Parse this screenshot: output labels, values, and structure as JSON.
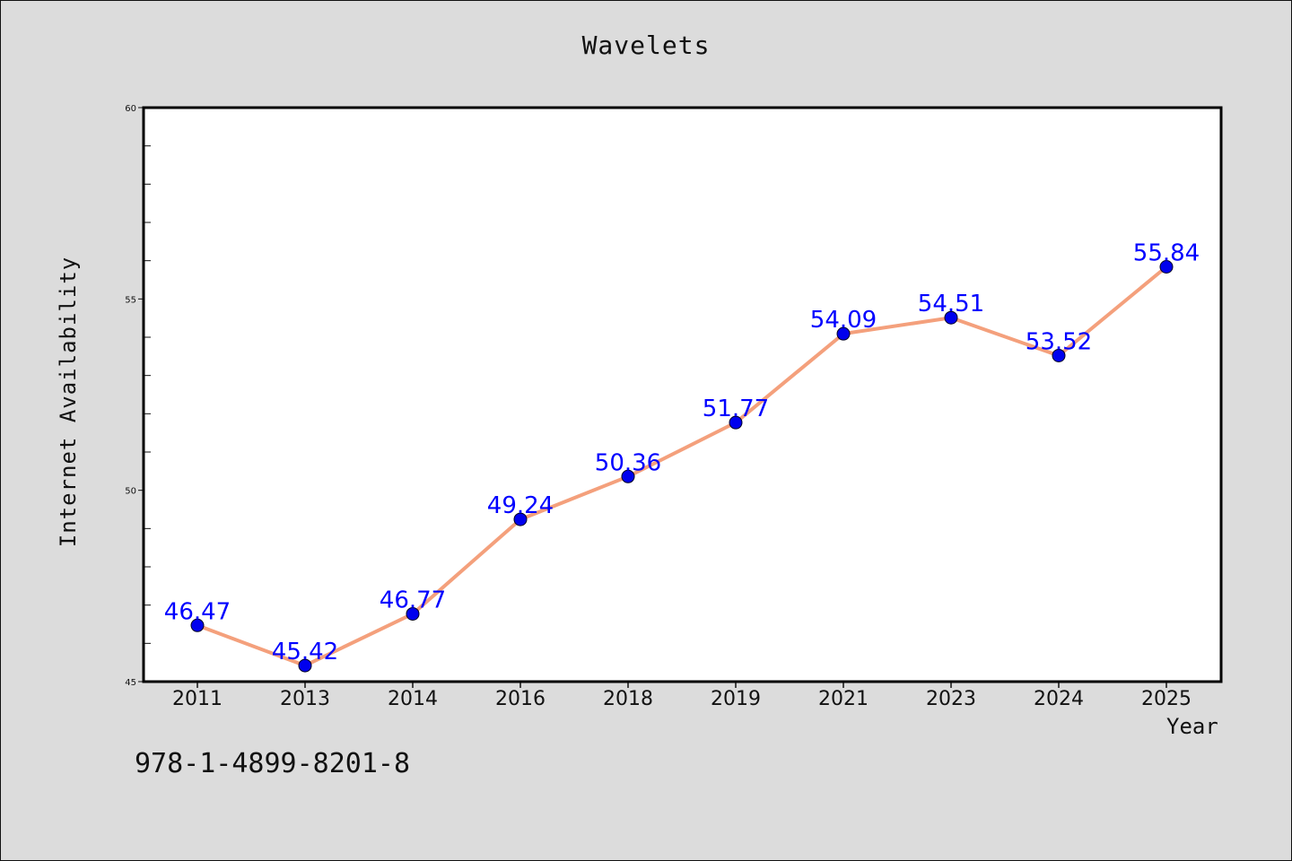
{
  "chart_data": {
    "type": "line",
    "title": "Wavelets",
    "xlabel": "Year",
    "ylabel": "Internet Availability",
    "categories": [
      "2011",
      "2013",
      "2014",
      "2016",
      "2018",
      "2019",
      "2021",
      "2023",
      "2024",
      "2025"
    ],
    "series": [
      {
        "values": [
          46.47,
          45.42,
          46.77,
          49.24,
          50.36,
          51.77,
          54.09,
          54.51,
          53.52,
          55.84
        ],
        "labels": [
          "46.47",
          "45.42",
          "46.77",
          "49.24",
          "50.36",
          "51.77",
          "54.09",
          "54.51",
          "53.52",
          "55.84"
        ],
        "line_color": "#f4a07c",
        "marker_color": "#0000ee",
        "label_color": "#0000ff"
      }
    ],
    "ylim": [
      45,
      60
    ],
    "yticks": [
      45,
      50,
      55,
      60
    ],
    "ytick_labels": [
      "45",
      "50",
      "55",
      "60"
    ],
    "grid": false,
    "legend": "none"
  },
  "footer": {
    "isbn": "978-1-4899-8201-8"
  }
}
